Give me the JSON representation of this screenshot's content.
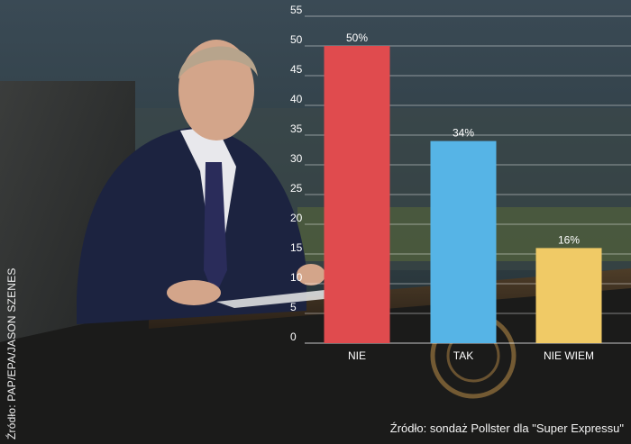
{
  "photo_credit": "Źródło: PAP/EPA/JASON SZENES",
  "source_note": "Źródło: sondaż Pollster dla \"Super Expressu\"",
  "chart_data": {
    "type": "bar",
    "categories": [
      "NIE",
      "TAK",
      "NIE WIEM"
    ],
    "values": [
      50,
      34,
      16
    ],
    "data_labels": [
      "50%",
      "34%",
      "16%"
    ],
    "colors": [
      "#e04b4e",
      "#56b4e6",
      "#f0ca66"
    ],
    "ylim": [
      0,
      55
    ],
    "yticks": [
      0,
      5,
      10,
      15,
      20,
      25,
      30,
      35,
      40,
      45,
      50,
      55
    ],
    "grid": true,
    "title": "",
    "xlabel": "",
    "ylabel": ""
  }
}
